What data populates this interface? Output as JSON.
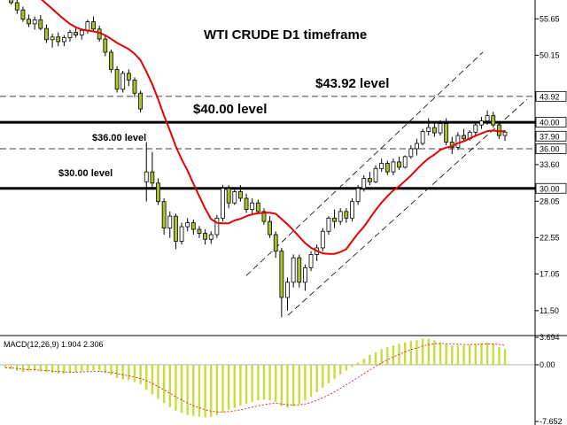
{
  "chart_data": [
    {
      "type": "candlestick",
      "title": "WTI CRUDE D1 timeframe",
      "ylim": [
        8.0,
        58.5
      ],
      "y_ticks": [
        "55.65",
        "50.15",
        "43.92",
        "39.60",
        "37.90",
        "33.60",
        "28.05",
        "22.55",
        "17.05",
        "11.50"
      ],
      "price_markers": [
        {
          "label": "43.92",
          "value": 43.92,
          "style": "dashed"
        },
        {
          "label": "40.00",
          "value": 40.0,
          "style": "solid-bold"
        },
        {
          "label": "37.90",
          "value": 37.9,
          "style": "current"
        },
        {
          "label": "36.00",
          "value": 36.0,
          "style": "dashed"
        },
        {
          "label": "30.00",
          "value": 30.0,
          "style": "solid-bold"
        }
      ],
      "annotations": [
        {
          "text": "$43.92 level",
          "value": 43.92
        },
        {
          "text": "$40.00 level",
          "value": 40.0
        },
        {
          "text": "$36.00 level",
          "value": 36.0
        },
        {
          "text": "$30.00 level",
          "value": 30.0
        }
      ],
      "colors": {
        "bull": "#ffffff",
        "bear": "#a8c22c",
        "ma": "#e60000",
        "level": "#000000",
        "channel": "#000000"
      },
      "candles": [
        [
          59.8,
          60.6,
          58.6,
          59.3
        ],
        [
          59.3,
          59.8,
          57.8,
          58.1
        ],
        [
          58.1,
          58.9,
          56.4,
          57.0
        ],
        [
          57.0,
          57.5,
          55.2,
          55.6
        ],
        [
          55.6,
          56.3,
          54.4,
          54.9
        ],
        [
          54.9,
          56.0,
          54.0,
          55.5
        ],
        [
          55.5,
          56.2,
          53.9,
          54.2
        ],
        [
          54.2,
          54.8,
          52.0,
          52.5
        ],
        [
          52.5,
          53.4,
          51.3,
          52.9
        ],
        [
          52.9,
          53.6,
          51.5,
          52.2
        ],
        [
          52.2,
          53.2,
          51.5,
          52.8
        ],
        [
          52.8,
          54.0,
          52.2,
          53.6
        ],
        [
          53.6,
          54.5,
          52.8,
          53.2
        ],
        [
          53.2,
          54.2,
          52.5,
          53.9
        ],
        [
          53.9,
          55.5,
          53.4,
          55.2
        ],
        [
          55.2,
          56.0,
          53.8,
          54.1
        ],
        [
          54.1,
          54.6,
          52.2,
          52.6
        ],
        [
          52.6,
          53.3,
          50.0,
          50.6
        ],
        [
          50.6,
          51.0,
          47.5,
          48.0
        ],
        [
          48.0,
          48.5,
          44.5,
          45.0
        ],
        [
          45.0,
          47.8,
          44.5,
          47.4
        ],
        [
          47.4,
          48.0,
          45.5,
          46.4
        ],
        [
          46.4,
          46.8,
          43.8,
          44.4
        ],
        [
          44.4,
          44.8,
          41.5,
          42.0
        ],
        [
          31.0,
          37.0,
          28.0,
          32.5
        ],
        [
          32.5,
          35.5,
          30.0,
          30.8
        ],
        [
          30.8,
          31.5,
          27.5,
          28.0
        ],
        [
          28.0,
          28.5,
          23.0,
          24.0
        ],
        [
          24.0,
          26.5,
          22.5,
          25.8
        ],
        [
          25.8,
          26.2,
          20.8,
          22.0
        ],
        [
          22.0,
          24.8,
          21.5,
          24.2
        ],
        [
          24.2,
          25.5,
          23.5,
          24.8
        ],
        [
          24.8,
          25.3,
          23.0,
          23.8
        ],
        [
          23.8,
          24.3,
          22.5,
          23.2
        ],
        [
          23.2,
          23.8,
          21.5,
          22.3
        ],
        [
          22.3,
          23.5,
          21.6,
          23.0
        ],
        [
          23.0,
          26.0,
          22.5,
          25.5
        ],
        [
          25.5,
          30.5,
          25.0,
          30.0
        ],
        [
          30.0,
          30.5,
          27.0,
          27.8
        ],
        [
          27.8,
          30.0,
          27.5,
          29.5
        ],
        [
          29.5,
          30.5,
          28.0,
          28.5
        ],
        [
          28.5,
          29.2,
          26.3,
          26.8
        ],
        [
          26.8,
          28.5,
          26.0,
          27.8
        ],
        [
          27.8,
          28.3,
          26.2,
          26.5
        ],
        [
          26.5,
          27.0,
          24.5,
          25.0
        ],
        [
          25.0,
          25.8,
          22.5,
          23.0
        ],
        [
          23.0,
          23.5,
          19.5,
          20.5
        ],
        [
          20.5,
          21.0,
          10.5,
          13.5
        ],
        [
          13.5,
          16.5,
          11.5,
          15.8
        ],
        [
          15.8,
          20.0,
          15.0,
          19.5
        ],
        [
          19.5,
          20.0,
          15.0,
          15.8
        ],
        [
          15.8,
          18.5,
          14.5,
          18.0
        ],
        [
          18.0,
          20.5,
          17.5,
          20.0
        ],
        [
          20.0,
          21.5,
          19.0,
          21.0
        ],
        [
          21.0,
          24.0,
          20.5,
          23.5
        ],
        [
          23.5,
          25.8,
          23.0,
          25.5
        ],
        [
          25.5,
          26.8,
          24.0,
          25.0
        ],
        [
          25.0,
          27.0,
          24.5,
          26.5
        ],
        [
          26.5,
          27.0,
          24.8,
          25.5
        ],
        [
          25.5,
          28.5,
          25.0,
          28.0
        ],
        [
          28.0,
          30.5,
          27.5,
          30.0
        ],
        [
          30.0,
          32.0,
          29.5,
          31.5
        ],
        [
          31.5,
          32.5,
          30.5,
          31.0
        ],
        [
          31.0,
          33.5,
          30.8,
          33.0
        ],
        [
          33.0,
          34.5,
          32.5,
          33.8
        ],
        [
          33.8,
          34.2,
          32.0,
          32.5
        ],
        [
          32.5,
          34.5,
          32.0,
          34.0
        ],
        [
          34.0,
          34.8,
          32.8,
          33.2
        ],
        [
          33.2,
          35.0,
          33.0,
          34.8
        ],
        [
          34.8,
          36.5,
          34.5,
          36.0
        ],
        [
          36.0,
          37.5,
          35.0,
          36.8
        ],
        [
          36.8,
          39.0,
          36.5,
          38.6
        ],
        [
          38.6,
          40.6,
          38.0,
          39.2
        ],
        [
          39.2,
          40.0,
          37.8,
          38.4
        ],
        [
          38.4,
          40.3,
          38.0,
          39.8
        ],
        [
          39.8,
          40.6,
          36.5,
          37.0
        ],
        [
          37.0,
          37.8,
          35.2,
          36.2
        ],
        [
          36.2,
          38.5,
          35.8,
          38.0
        ],
        [
          38.0,
          39.0,
          37.0,
          37.5
        ],
        [
          37.5,
          38.8,
          37.2,
          38.5
        ],
        [
          38.5,
          40.0,
          38.0,
          39.6
        ],
        [
          39.6,
          40.8,
          39.0,
          40.2
        ],
        [
          40.2,
          41.8,
          39.6,
          41.0
        ],
        [
          41.0,
          41.6,
          39.2,
          39.6
        ],
        [
          39.6,
          40.2,
          37.5,
          38.0
        ],
        [
          38.0,
          38.8,
          37.2,
          38.5
        ]
      ],
      "moving_average": {
        "color": "#e60000"
      },
      "indicator": {
        "name": "MACD(12,26,9) 1.904 2.306",
        "y_ticks": [
          "3.694",
          "0.00",
          "-7.652"
        ],
        "ylim": [
          -7.652,
          3.694
        ],
        "histogram": [
          -0.4,
          -0.6,
          -0.8,
          -1.0,
          -0.9,
          -0.8,
          -0.9,
          -1.0,
          -1.1,
          -1.2,
          -1.2,
          -1.1,
          -1.0,
          -0.9,
          -0.8,
          -0.8,
          -0.9,
          -1.1,
          -1.4,
          -1.8,
          -2.0,
          -2.1,
          -2.3,
          -2.6,
          -3.4,
          -4.0,
          -4.6,
          -5.2,
          -5.7,
          -6.2,
          -6.5,
          -6.8,
          -6.9,
          -7.0,
          -7.1,
          -7.0,
          -6.8,
          -6.4,
          -6.1,
          -5.8,
          -5.5,
          -5.3,
          -5.0,
          -4.8,
          -4.7,
          -4.8,
          -5.0,
          -5.6,
          -5.8,
          -5.6,
          -5.3,
          -4.8,
          -4.3,
          -3.7,
          -3.1,
          -2.5,
          -1.9,
          -1.3,
          -0.8,
          -0.3,
          0.3,
          0.8,
          1.3,
          1.7,
          2.1,
          2.4,
          2.6,
          2.8,
          3.0,
          3.2,
          3.3,
          3.5,
          3.5,
          3.3,
          3.0,
          2.8,
          2.6,
          2.6,
          2.6,
          2.7,
          2.8,
          2.9,
          3.0,
          2.8,
          2.4,
          2.1
        ],
        "signal_color": "#e60000",
        "histogram_color": "#c8dc3c"
      }
    }
  ]
}
